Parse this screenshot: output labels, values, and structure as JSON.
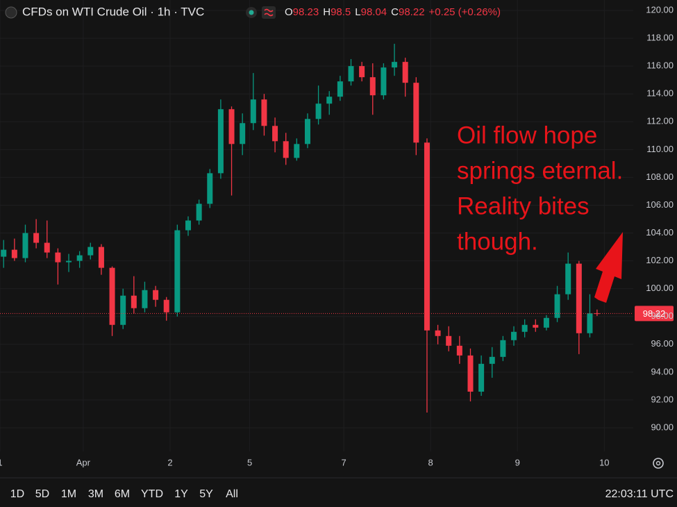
{
  "chart_data": {
    "type": "candlestick",
    "title": "CFDs on WTI Crude Oil · 1h · TVC",
    "ohlc_legend": [
      {
        "label": "O",
        "value": 98.23
      },
      {
        "label": "H",
        "value": 98.5
      },
      {
        "label": "L",
        "value": 98.04
      },
      {
        "label": "C",
        "value": 98.22
      }
    ],
    "change_label": "+0.25 (+0.26%)",
    "up_color": "#089981",
    "down_color": "#f23645",
    "x": [
      1,
      4,
      7,
      10,
      13,
      16,
      19,
      22,
      25,
      28,
      31,
      34,
      37,
      40,
      43,
      46,
      49,
      52,
      55,
      58,
      61,
      64,
      67,
      70,
      73,
      76,
      79,
      82,
      85,
      88,
      91,
      94,
      97,
      100,
      103,
      106,
      109,
      112,
      115,
      118,
      121,
      124,
      127,
      130,
      133,
      136,
      139,
      142,
      145,
      148,
      151,
      154,
      157,
      160,
      163,
      165
    ],
    "open": [
      102.3,
      102.8,
      102.2,
      104.0,
      103.3,
      102.6,
      101.9,
      102.0,
      102.4,
      103.0,
      101.5,
      97.4,
      99.5,
      98.6,
      99.9,
      99.2,
      98.3,
      104.2,
      104.9,
      106.1,
      108.3,
      112.9,
      110.4,
      111.9,
      113.6,
      111.7,
      110.6,
      109.4,
      110.4,
      112.2,
      113.3,
      113.8,
      114.9,
      116.0,
      115.2,
      113.9,
      115.9,
      116.3,
      114.8,
      110.5,
      97.0,
      96.6,
      95.9,
      95.2,
      92.6,
      94.6,
      95.1,
      96.3,
      96.9,
      97.4,
      97.2,
      97.9,
      99.6,
      101.8,
      96.8,
      98.23
    ],
    "high": [
      103.5,
      103.6,
      104.6,
      105.0,
      104.9,
      102.9,
      102.5,
      102.7,
      103.3,
      103.2,
      101.6,
      100.0,
      100.9,
      100.5,
      100.2,
      99.4,
      104.6,
      105.2,
      106.4,
      108.6,
      113.6,
      113.1,
      112.6,
      115.5,
      114.0,
      112.3,
      111.2,
      110.8,
      112.6,
      114.6,
      114.2,
      115.3,
      116.5,
      116.3,
      116.2,
      116.2,
      117.6,
      116.6,
      115.2,
      110.8,
      97.4,
      97.3,
      96.6,
      95.7,
      95.2,
      95.8,
      96.6,
      97.3,
      97.8,
      97.8,
      98.1,
      100.2,
      102.6,
      102.0,
      99.6,
      98.5
    ],
    "low": [
      101.5,
      102.0,
      101.9,
      102.9,
      102.2,
      100.3,
      101.2,
      101.5,
      102.1,
      101.0,
      96.6,
      97.1,
      98.2,
      98.3,
      98.7,
      97.7,
      98.0,
      103.8,
      104.6,
      105.8,
      107.9,
      106.7,
      109.6,
      111.4,
      111.0,
      109.8,
      108.9,
      109.2,
      110.1,
      111.8,
      112.5,
      113.5,
      114.6,
      114.9,
      112.5,
      113.6,
      115.3,
      113.8,
      109.6,
      91.1,
      96.0,
      95.5,
      94.6,
      91.9,
      92.3,
      93.6,
      94.8,
      95.9,
      96.5,
      96.9,
      97.0,
      97.6,
      99.2,
      95.3,
      96.5,
      98.04
    ],
    "close": [
      102.8,
      102.2,
      104.0,
      103.3,
      102.6,
      101.9,
      102.0,
      102.4,
      103.0,
      101.5,
      97.4,
      99.5,
      98.6,
      99.9,
      99.2,
      98.3,
      104.2,
      104.9,
      106.1,
      108.3,
      112.9,
      110.4,
      111.9,
      113.6,
      111.7,
      110.6,
      109.4,
      110.4,
      112.2,
      113.3,
      113.8,
      114.9,
      116.0,
      115.2,
      113.9,
      115.9,
      116.3,
      114.8,
      110.5,
      97.0,
      96.6,
      95.9,
      95.2,
      92.6,
      94.6,
      95.1,
      96.3,
      96.9,
      97.4,
      97.2,
      97.9,
      99.6,
      101.8,
      96.8,
      98.23,
      98.22
    ],
    "xlim": [
      0,
      175
    ],
    "xticks": [
      {
        "value": 0,
        "label": "1"
      },
      {
        "value": 23,
        "label": "Apr"
      },
      {
        "value": 47,
        "label": "2"
      },
      {
        "value": 69,
        "label": "5"
      },
      {
        "value": 95,
        "label": "7"
      },
      {
        "value": 119,
        "label": "8"
      },
      {
        "value": 143,
        "label": "9"
      },
      {
        "value": 167,
        "label": "10"
      }
    ],
    "ylim": [
      90,
      120
    ],
    "yticks": [
      {
        "value": 90,
        "label": "90.00"
      },
      {
        "value": 92,
        "label": "92.00"
      },
      {
        "value": 94,
        "label": "94.00"
      },
      {
        "value": 96,
        "label": "96.00"
      },
      {
        "value": 98,
        "label": "98.00"
      },
      {
        "value": 100,
        "label": "100.00"
      },
      {
        "value": 102,
        "label": "102.00"
      },
      {
        "value": 104,
        "label": "104.00"
      },
      {
        "value": 106,
        "label": "106.00"
      },
      {
        "value": 108,
        "label": "108.00"
      },
      {
        "value": 110,
        "label": "110.00"
      },
      {
        "value": 112,
        "label": "112.00"
      },
      {
        "value": 114,
        "label": "114.00"
      },
      {
        "value": 116,
        "label": "116.00"
      },
      {
        "value": 118,
        "label": "118.00"
      },
      {
        "value": 120,
        "label": "120.00"
      }
    ],
    "grid": true,
    "last_price": 98.22,
    "annotation": [
      "Oil flow hope",
      "springs eternal.",
      "Reality bites",
      "though."
    ],
    "timeframes": [
      "1D",
      "5D",
      "1M",
      "3M",
      "6M",
      "YTD",
      "1Y",
      "5Y",
      "All"
    ],
    "clock": "22:03:11 UTC"
  }
}
